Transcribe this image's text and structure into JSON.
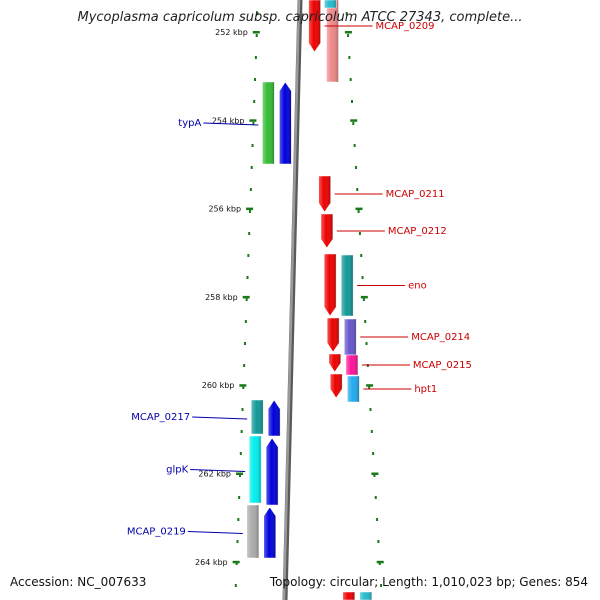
{
  "title": "Mycoplasma capricolum subsp. capricolum ATCC 27343, complete...",
  "footer": {
    "accession": "Accession: NC_007633",
    "summary": "Topology: circular; Length: 1,010,023 bp; Genes: 854"
  },
  "colors": {
    "backbone": "#9a9a9a",
    "tick": "#1a7a1a",
    "label_forward": "#0000aa",
    "label_reverse": "#cc0000",
    "red": "#ee0000",
    "salmon": "#ee8888",
    "cyan_reverse": "#22bbcc",
    "green": "#33bb33",
    "blue": "#0000dd",
    "teal": "#119999",
    "cyan": "#00eeee",
    "gray": "#aaaaaa",
    "purple": "#6655cc",
    "magenta": "#ff1199",
    "sky": "#22aaee"
  },
  "axis_labels": [
    "252 kbp",
    "254 kbp",
    "256 kbp",
    "258 kbp",
    "260 kbp",
    "262 kbp",
    "264 kbp"
  ],
  "genes": [
    {
      "name": "MCAP_0209",
      "strand": "reverse",
      "color": "red",
      "lane": 0,
      "start": 0,
      "end": 52,
      "arrow": true,
      "label": "MCAP_0209"
    },
    {
      "name": "MCAP_0209_companion",
      "strand": "reverse",
      "color": "salmon",
      "lane": 1,
      "start": 0,
      "end": 82,
      "arrow": false,
      "label": ""
    },
    {
      "name": "top_cyan",
      "strand": "reverse",
      "color": "cyan_reverse",
      "lane": 1,
      "start": 0,
      "end": 8,
      "arrow": false,
      "label": ""
    },
    {
      "name": "typA",
      "strand": "forward",
      "color": "green",
      "lane": 0,
      "start": 82,
      "end": 164,
      "arrow": false,
      "label": "typA"
    },
    {
      "name": "typA_companion",
      "strand": "forward",
      "color": "blue",
      "lane": 1,
      "start": 82,
      "end": 164,
      "arrow": true,
      "label": ""
    },
    {
      "name": "MCAP_0211",
      "strand": "reverse",
      "color": "red",
      "lane": 0,
      "start": 176,
      "end": 212,
      "arrow": true,
      "label": "MCAP_0211"
    },
    {
      "name": "MCAP_0212",
      "strand": "reverse",
      "color": "red",
      "lane": 0,
      "start": 214,
      "end": 248,
      "arrow": true,
      "label": "MCAP_0212"
    },
    {
      "name": "eno_leader",
      "strand": "reverse",
      "color": "red",
      "lane": 0,
      "start": 254,
      "end": 316,
      "arrow": true,
      "label": ""
    },
    {
      "name": "eno",
      "strand": "reverse",
      "color": "teal",
      "lane": 1,
      "start": 255,
      "end": 316,
      "arrow": false,
      "label": "eno"
    },
    {
      "name": "MCAP_0214_leader",
      "strand": "reverse",
      "color": "red",
      "lane": 0,
      "start": 318,
      "end": 352,
      "arrow": true,
      "label": ""
    },
    {
      "name": "MCAP_0214",
      "strand": "reverse",
      "color": "purple",
      "lane": 1,
      "start": 319,
      "end": 355,
      "arrow": false,
      "label": "MCAP_0214"
    },
    {
      "name": "MCAP_0215_leader",
      "strand": "reverse",
      "color": "red",
      "lane": 0,
      "start": 354,
      "end": 372,
      "arrow": true,
      "label": ""
    },
    {
      "name": "MCAP_0215",
      "strand": "reverse",
      "color": "magenta",
      "lane": 1,
      "start": 355,
      "end": 375,
      "arrow": false,
      "label": "MCAP_0215"
    },
    {
      "name": "hpt1_leader",
      "strand": "reverse",
      "color": "red",
      "lane": 0,
      "start": 374,
      "end": 398,
      "arrow": true,
      "label": ""
    },
    {
      "name": "hpt1",
      "strand": "reverse",
      "color": "sky",
      "lane": 1,
      "start": 376,
      "end": 402,
      "arrow": false,
      "label": "hpt1"
    },
    {
      "name": "MCAP_0217",
      "strand": "forward",
      "color": "teal",
      "lane": 0,
      "start": 400,
      "end": 434,
      "arrow": false,
      "label": "MCAP_0217"
    },
    {
      "name": "MCAP_0217_companion",
      "strand": "forward",
      "color": "blue",
      "lane": 1,
      "start": 400,
      "end": 436,
      "arrow": true,
      "label": ""
    },
    {
      "name": "glpK",
      "strand": "forward",
      "color": "cyan",
      "lane": 0,
      "start": 436,
      "end": 503,
      "arrow": false,
      "label": "glpK"
    },
    {
      "name": "glpK_companion",
      "strand": "forward",
      "color": "blue",
      "lane": 1,
      "start": 438,
      "end": 505,
      "arrow": true,
      "label": ""
    },
    {
      "name": "MCAP_0219",
      "strand": "forward",
      "color": "gray",
      "lane": 0,
      "start": 505,
      "end": 558,
      "arrow": false,
      "label": "MCAP_0219"
    },
    {
      "name": "MCAP_0219_companion",
      "strand": "forward",
      "color": "blue",
      "lane": 1,
      "start": 507,
      "end": 558,
      "arrow": true,
      "label": ""
    },
    {
      "name": "bottom_red",
      "strand": "reverse",
      "color": "red",
      "lane": 0,
      "start": 592,
      "end": 600,
      "arrow": false,
      "label": ""
    },
    {
      "name": "bottom_cyan",
      "strand": "reverse",
      "color": "cyan_reverse",
      "lane": 1,
      "start": 592,
      "end": 600,
      "arrow": false,
      "label": ""
    }
  ]
}
